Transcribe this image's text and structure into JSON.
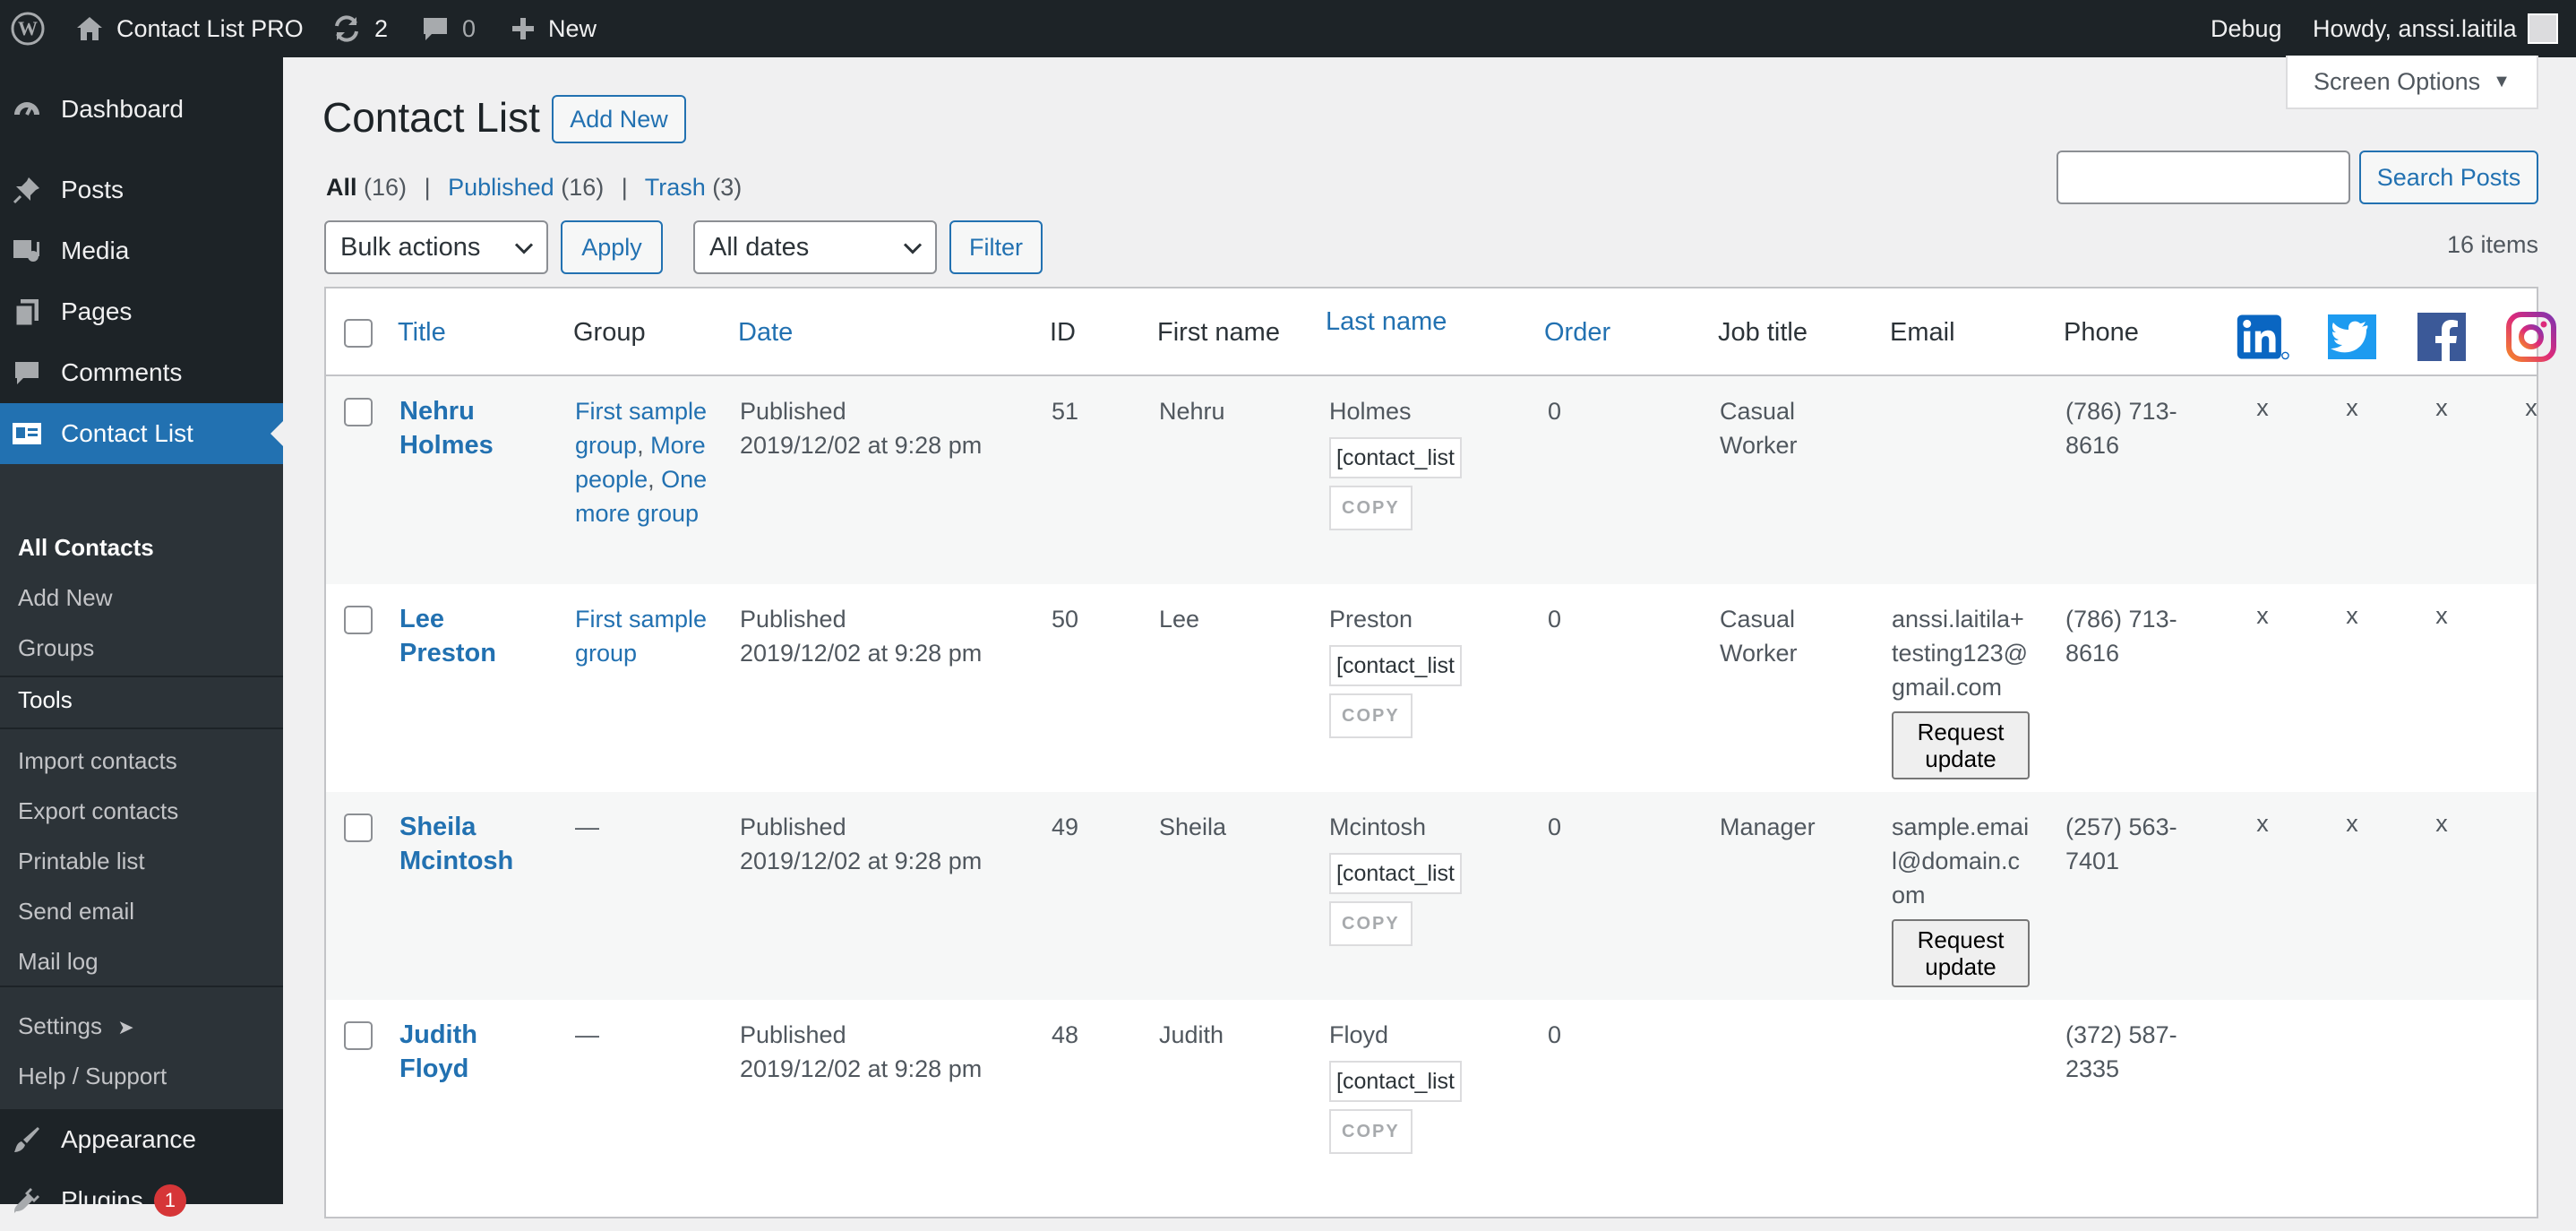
{
  "adminbar": {
    "site_name": "Contact List PRO",
    "updates_count": "2",
    "comments_count": "0",
    "new_label": "New",
    "debug_label": "Debug",
    "howdy": "Howdy, anssi.laitila"
  },
  "sidebar": {
    "items": {
      "dashboard": "Dashboard",
      "posts": "Posts",
      "media": "Media",
      "pages": "Pages",
      "comments": "Comments",
      "contact_list": "Contact List",
      "appearance": "Appearance",
      "plugins": "Plugins"
    },
    "plugins_badge": "1",
    "submenu": {
      "all_contacts": "All Contacts",
      "add_new": "Add New",
      "groups": "Groups",
      "tools": "Tools",
      "import": "Import contacts",
      "export": "Export contacts",
      "printable": "Printable list",
      "send_email": "Send email",
      "mail_log": "Mail log",
      "settings": "Settings",
      "settings_arrow": "➤",
      "help": "Help / Support"
    }
  },
  "main": {
    "screen_options": "Screen Options",
    "page_title": "Contact List",
    "add_new": "Add New",
    "views": {
      "all_label": "All",
      "all_count": "(16)",
      "published_label": "Published",
      "published_count": "(16)",
      "trash_label": "Trash",
      "trash_count": "(3)",
      "separator": "|"
    },
    "search_placeholder": "",
    "search_button": "Search Posts",
    "bulk_actions": "Bulk actions",
    "apply": "Apply",
    "all_dates": "All dates",
    "filter": "Filter",
    "items_count": "16 items"
  },
  "table": {
    "columns": {
      "title": "Title",
      "group": "Group",
      "date": "Date",
      "id": "ID",
      "first_name": "First name",
      "last_name": "Last name",
      "order": "Order",
      "job_title": "Job title",
      "email": "Email",
      "phone": "Phone"
    },
    "social_icons": [
      "linkedin-icon",
      "twitter-icon",
      "facebook-icon",
      "instagram-icon"
    ],
    "shortcode_text": "[contact_list",
    "copy_label": "COPY",
    "request_update_line1": "Request",
    "request_update_line2": "update",
    "x_mark": "x",
    "rows": [
      {
        "title_line1": "Nehru",
        "title_line2": "Holmes",
        "groups": [
          "First sample",
          "group",
          "More",
          "people",
          "One",
          "more group"
        ],
        "date_status": "Published",
        "date_value": "2019/12/02 at 9:28 pm",
        "id": "51",
        "first_name": "Nehru",
        "last_name": "Holmes",
        "order": "0",
        "job_line1": "Casual",
        "job_line2": "Worker",
        "phone_line1": "(786) 713-",
        "phone_line2": "8616"
      },
      {
        "title_line1": "Lee",
        "title_line2": "Preston",
        "groups": [
          "First sample",
          "group"
        ],
        "date_status": "Published",
        "date_value": "2019/12/02 at 9:28 pm",
        "id": "50",
        "first_name": "Lee",
        "last_name": "Preston",
        "order": "0",
        "job_line1": "Casual",
        "job_line2": "Worker",
        "email_lines": [
          "anssi.laitila+",
          "testing123@",
          "gmail.com"
        ],
        "phone_line1": "(786) 713-",
        "phone_line2": "8616"
      },
      {
        "title_line1": "Sheila",
        "title_line2": "Mcintosh",
        "group_dash": "—",
        "date_status": "Published",
        "date_value": "2019/12/02 at 9:28 pm",
        "id": "49",
        "first_name": "Sheila",
        "last_name": "Mcintosh",
        "order": "0",
        "job_line1": "Manager",
        "email_lines": [
          "sample.emai",
          "l@domain.c",
          "om"
        ],
        "phone_line1": "(257) 563-",
        "phone_line2": "7401"
      },
      {
        "title_line1": "Judith",
        "title_line2": "Floyd",
        "group_dash": "—",
        "date_status": "Published",
        "date_value": "2019/12/02 at 9:28 pm",
        "id": "48",
        "first_name": "Judith",
        "last_name": "Floyd",
        "order": "0",
        "phone_line1": "(372) 587-",
        "phone_line2": "2335"
      }
    ]
  },
  "colors": {
    "accent": "#2271b1",
    "adminbar_bg": "#1d2327",
    "linkedin": "#0a66c2",
    "twitter": "#1d9bf0",
    "facebook": "#3b5998",
    "instagram": "#c13584",
    "badge": "#d63638"
  }
}
